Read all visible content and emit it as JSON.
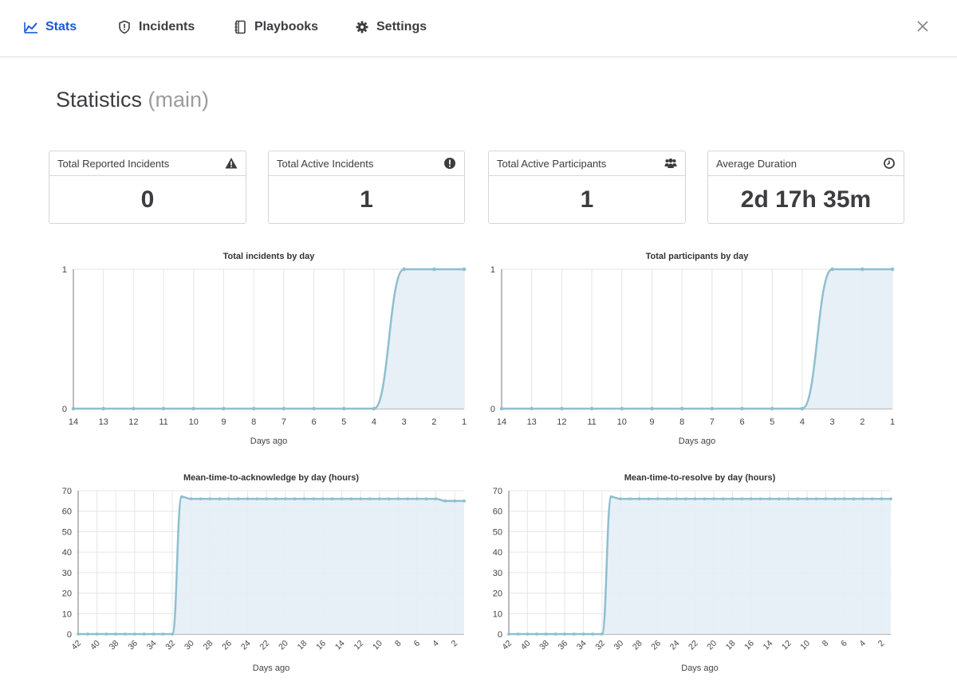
{
  "nav": {
    "tabs": [
      {
        "label": "Stats",
        "icon": "chart-line-icon",
        "active": true
      },
      {
        "label": "Incidents",
        "icon": "shield-icon",
        "active": false
      },
      {
        "label": "Playbooks",
        "icon": "playbook-icon",
        "active": false
      },
      {
        "label": "Settings",
        "icon": "gear-icon",
        "active": false
      }
    ],
    "close_icon": "close-icon"
  },
  "page": {
    "title": "Statistics",
    "subtitle": "(main)"
  },
  "cards": [
    {
      "label": "Total Reported Incidents",
      "value": "0",
      "icon": "warning-icon"
    },
    {
      "label": "Total Active Incidents",
      "value": "1",
      "icon": "exclamation-circle-icon"
    },
    {
      "label": "Total Active Participants",
      "value": "1",
      "icon": "users-icon"
    },
    {
      "label": "Average Duration",
      "value": "2d 17h 35m",
      "icon": "clock-icon"
    }
  ],
  "colors": {
    "accent": "#1c58d9",
    "line": "#8ebfcf",
    "fill": "#e4eef5",
    "grid": "#e6e6e6",
    "text": "#3d3c40"
  },
  "chart_data": [
    {
      "type": "area",
      "title": "Total incidents by day",
      "xlabel": "Days ago",
      "ylabel": "",
      "x": [
        14,
        13,
        12,
        11,
        10,
        9,
        8,
        7,
        6,
        5,
        4,
        3,
        2,
        1
      ],
      "values": [
        0,
        0,
        0,
        0,
        0,
        0,
        0,
        0,
        0,
        0,
        0,
        1,
        1,
        1
      ],
      "xticks": [
        "14",
        "13",
        "12",
        "11",
        "10",
        "9",
        "8",
        "7",
        "6",
        "5",
        "4",
        "3",
        "2",
        "1"
      ],
      "yticks": [
        0,
        1
      ],
      "ylim": [
        0,
        1
      ],
      "grid": true
    },
    {
      "type": "area",
      "title": "Total participants by day",
      "xlabel": "Days ago",
      "ylabel": "",
      "x": [
        14,
        13,
        12,
        11,
        10,
        9,
        8,
        7,
        6,
        5,
        4,
        3,
        2,
        1
      ],
      "values": [
        0,
        0,
        0,
        0,
        0,
        0,
        0,
        0,
        0,
        0,
        0,
        1,
        1,
        1
      ],
      "xticks": [
        "14",
        "13",
        "12",
        "11",
        "10",
        "9",
        "8",
        "7",
        "6",
        "5",
        "4",
        "3",
        "2",
        "1"
      ],
      "yticks": [
        0,
        1
      ],
      "ylim": [
        0,
        1
      ],
      "grid": true
    },
    {
      "type": "area",
      "title": "Mean-time-to-acknowledge by day (hours)",
      "xlabel": "Days ago",
      "ylabel": "",
      "x": [
        42,
        41,
        40,
        39,
        38,
        37,
        36,
        35,
        34,
        33,
        32,
        31,
        30,
        29,
        28,
        27,
        26,
        25,
        24,
        23,
        22,
        21,
        20,
        19,
        18,
        17,
        16,
        15,
        14,
        13,
        12,
        11,
        10,
        9,
        8,
        7,
        6,
        5,
        4,
        3,
        2,
        1
      ],
      "values": [
        0,
        0,
        0,
        0,
        0,
        0,
        0,
        0,
        0,
        0,
        0,
        67,
        66,
        66,
        66,
        66,
        66,
        66,
        66,
        66,
        66,
        66,
        66,
        66,
        66,
        66,
        66,
        66,
        66,
        66,
        66,
        66,
        66,
        66,
        66,
        66,
        66,
        66,
        66,
        65,
        65,
        65
      ],
      "xticks": [
        "42",
        "40",
        "38",
        "36",
        "34",
        "32",
        "30",
        "28",
        "26",
        "24",
        "22",
        "20",
        "18",
        "16",
        "14",
        "12",
        "10",
        "8",
        "6",
        "4",
        "2"
      ],
      "yticks": [
        0,
        10,
        20,
        30,
        40,
        50,
        60,
        70
      ],
      "ylim": [
        0,
        70
      ],
      "grid": true
    },
    {
      "type": "area",
      "title": "Mean-time-to-resolve by day (hours)",
      "xlabel": "Days ago",
      "ylabel": "",
      "x": [
        42,
        41,
        40,
        39,
        38,
        37,
        36,
        35,
        34,
        33,
        32,
        31,
        30,
        29,
        28,
        27,
        26,
        25,
        24,
        23,
        22,
        21,
        20,
        19,
        18,
        17,
        16,
        15,
        14,
        13,
        12,
        11,
        10,
        9,
        8,
        7,
        6,
        5,
        4,
        3,
        2,
        1
      ],
      "values": [
        0,
        0,
        0,
        0,
        0,
        0,
        0,
        0,
        0,
        0,
        0,
        67,
        66,
        66,
        66,
        66,
        66,
        66,
        66,
        66,
        66,
        66,
        66,
        66,
        66,
        66,
        66,
        66,
        66,
        66,
        66,
        66,
        66,
        66,
        66,
        66,
        66,
        66,
        66,
        66,
        66,
        66
      ],
      "xticks": [
        "42",
        "40",
        "38",
        "36",
        "34",
        "32",
        "30",
        "28",
        "26",
        "24",
        "22",
        "20",
        "18",
        "16",
        "14",
        "12",
        "10",
        "8",
        "6",
        "4",
        "2"
      ],
      "yticks": [
        0,
        10,
        20,
        30,
        40,
        50,
        60,
        70
      ],
      "ylim": [
        0,
        70
      ],
      "grid": true
    }
  ]
}
